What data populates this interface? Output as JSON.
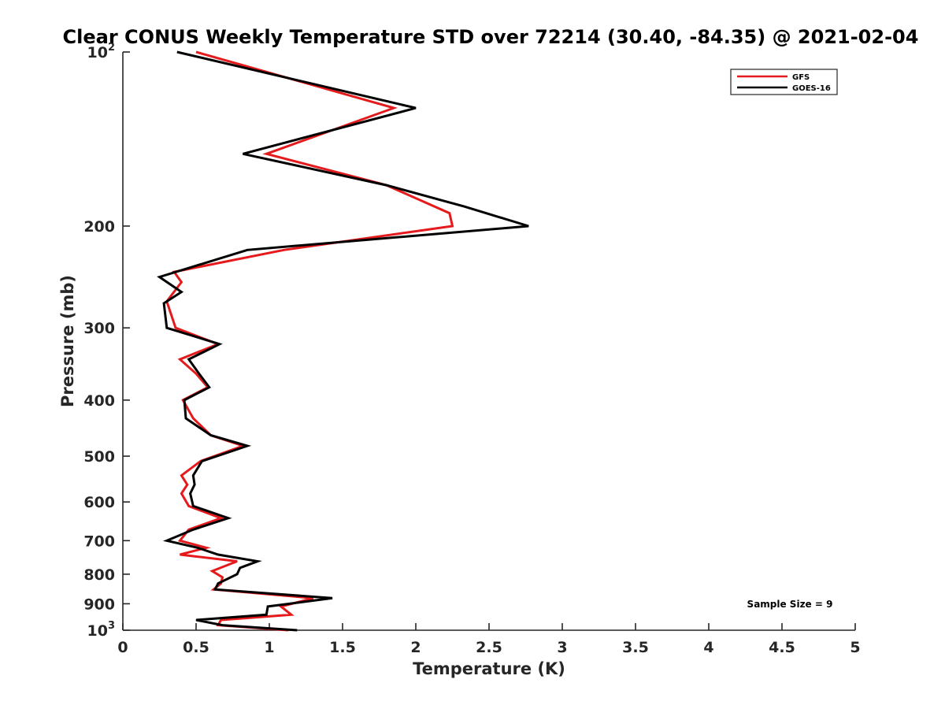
{
  "chart_data": {
    "type": "line",
    "title": "Clear CONUS Weekly Temperature STD over 72214 (30.40, -84.35) @ 2021-02-04",
    "xlabel": "Temperature (K)",
    "ylabel": "Pressure (mb)",
    "xlim": [
      0,
      5
    ],
    "ylim": [
      100,
      1000
    ],
    "y_scale": "log",
    "y_reversed": true,
    "x_ticks": [
      "0",
      "0.5",
      "1",
      "1.5",
      "2",
      "2.5",
      "3",
      "3.5",
      "4",
      "4.5",
      "5"
    ],
    "y_ticks": [
      {
        "value": 100,
        "base": "10",
        "exp": "2"
      },
      {
        "value": 200,
        "label": "200"
      },
      {
        "value": 300,
        "label": "300"
      },
      {
        "value": 400,
        "label": "400"
      },
      {
        "value": 500,
        "label": "500"
      },
      {
        "value": 600,
        "label": "600"
      },
      {
        "value": 700,
        "label": "700"
      },
      {
        "value": 800,
        "label": "800"
      },
      {
        "value": 900,
        "label": "900"
      },
      {
        "value": 1000,
        "base": "10",
        "exp": "3"
      }
    ],
    "legend_position": "top-right",
    "grid": false,
    "series": [
      {
        "name": "GFS",
        "color": "#e41a1c",
        "points": [
          [
            0.5,
            100
          ],
          [
            1.85,
            125
          ],
          [
            0.98,
            150
          ],
          [
            1.8,
            170
          ],
          [
            2.23,
            190
          ],
          [
            2.25,
            200
          ],
          [
            1.1,
            220
          ],
          [
            0.35,
            240
          ],
          [
            0.4,
            250
          ],
          [
            0.3,
            270
          ],
          [
            0.36,
            300
          ],
          [
            0.65,
            320
          ],
          [
            0.39,
            340
          ],
          [
            0.5,
            360
          ],
          [
            0.58,
            380
          ],
          [
            0.41,
            400
          ],
          [
            0.48,
            430
          ],
          [
            0.6,
            460
          ],
          [
            0.82,
            480
          ],
          [
            0.53,
            510
          ],
          [
            0.4,
            540
          ],
          [
            0.44,
            560
          ],
          [
            0.4,
            580
          ],
          [
            0.45,
            610
          ],
          [
            0.67,
            640
          ],
          [
            0.45,
            670
          ],
          [
            0.39,
            700
          ],
          [
            0.57,
            720
          ],
          [
            0.39,
            740
          ],
          [
            0.78,
            760
          ],
          [
            0.61,
            790
          ],
          [
            0.68,
            810
          ],
          [
            0.67,
            830
          ],
          [
            0.62,
            850
          ],
          [
            1.3,
            880
          ],
          [
            1.08,
            910
          ],
          [
            1.15,
            940
          ],
          [
            0.67,
            960
          ],
          [
            0.65,
            980
          ],
          [
            1.13,
            1000
          ]
        ]
      },
      {
        "name": "GOES-16",
        "color": "#000000",
        "points": [
          [
            0.37,
            100
          ],
          [
            2.0,
            125
          ],
          [
            0.82,
            150
          ],
          [
            1.8,
            170
          ],
          [
            2.33,
            185
          ],
          [
            2.77,
            200
          ],
          [
            0.85,
            220
          ],
          [
            0.25,
            245
          ],
          [
            0.4,
            260
          ],
          [
            0.28,
            272
          ],
          [
            0.3,
            300
          ],
          [
            0.66,
            320
          ],
          [
            0.45,
            340
          ],
          [
            0.52,
            360
          ],
          [
            0.59,
            380
          ],
          [
            0.42,
            400
          ],
          [
            0.43,
            430
          ],
          [
            0.6,
            460
          ],
          [
            0.85,
            480
          ],
          [
            0.54,
            510
          ],
          [
            0.48,
            540
          ],
          [
            0.49,
            560
          ],
          [
            0.46,
            580
          ],
          [
            0.48,
            610
          ],
          [
            0.72,
            640
          ],
          [
            0.48,
            670
          ],
          [
            0.3,
            700
          ],
          [
            0.51,
            720
          ],
          [
            0.65,
            740
          ],
          [
            0.92,
            760
          ],
          [
            0.8,
            780
          ],
          [
            0.78,
            800
          ],
          [
            0.65,
            830
          ],
          [
            0.63,
            850
          ],
          [
            1.43,
            880
          ],
          [
            0.99,
            910
          ],
          [
            0.98,
            940
          ],
          [
            0.5,
            960
          ],
          [
            0.68,
            980
          ],
          [
            1.19,
            1000
          ]
        ]
      }
    ],
    "annotation": "Sample Size = 9"
  }
}
